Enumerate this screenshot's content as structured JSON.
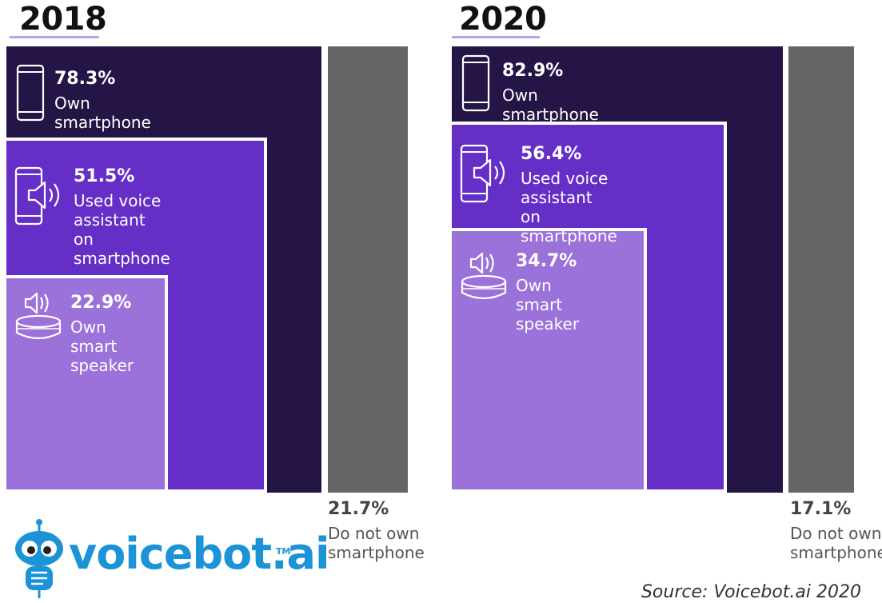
{
  "chart_data": [
    {
      "type": "nested-area",
      "year": "2018",
      "series": [
        {
          "value_label": "78.3%",
          "value": 78.3,
          "label": "Own smartphone",
          "icon": "smartphone-icon"
        },
        {
          "value_label": "51.5%",
          "value": 51.5,
          "label": "Used voice assistant\non smartphone",
          "icon": "phone-speaker-icon"
        },
        {
          "value_label": "22.9%",
          "value": 22.9,
          "label": "Own smart\nspeaker",
          "icon": "smart-speaker-icon"
        }
      ],
      "remainder": {
        "value_label": "21.7%",
        "value": 21.7,
        "label": "Do not own\nsmartphone"
      }
    },
    {
      "type": "nested-area",
      "year": "2020",
      "series": [
        {
          "value_label": "82.9%",
          "value": 82.9,
          "label": "Own smartphone",
          "icon": "smartphone-icon"
        },
        {
          "value_label": "56.4%",
          "value": 56.4,
          "label": "Used voice assistant\non smartphone",
          "icon": "phone-speaker-icon"
        },
        {
          "value_label": "34.7%",
          "value": 34.7,
          "label": "Own smart\nspeaker",
          "icon": "smart-speaker-icon"
        }
      ],
      "remainder": {
        "value_label": "17.1%",
        "value": 17.1,
        "label": "Do not own\nsmartphone"
      }
    }
  ],
  "colors": {
    "own_smartphone": "#241546",
    "voice_assistant": "#652ec7",
    "smart_speaker": "#9b72d9",
    "no_smartphone": "#666666",
    "year_underline": "#b5a6e6",
    "logo": "#1b93d6"
  },
  "logo": {
    "text": "voicebot.ai",
    "tm": "TM",
    "icon": "robot-mascot-icon"
  },
  "source": "Source: Voicebot.ai 2020"
}
